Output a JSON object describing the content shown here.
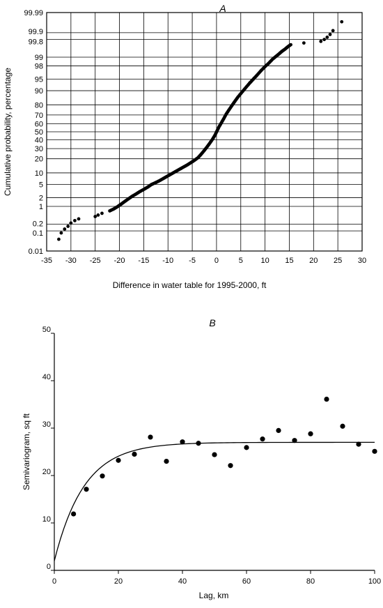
{
  "chart_data": [
    {
      "type": "scatter",
      "panel": "A",
      "title": "A",
      "xlabel": "Difference in water table for 1995-2000, ft",
      "ylabel": "Cumulative probability, percentage",
      "xlim": [
        -35,
        30
      ],
      "xticks": [
        -35,
        -30,
        -25,
        -20,
        -15,
        -10,
        -5,
        0,
        5,
        10,
        15,
        20,
        25,
        30
      ],
      "xtick_labels": [
        "-35",
        "-30",
        "-25",
        "-20",
        "-15",
        "-10",
        "-5",
        "0",
        "5",
        "10",
        "15",
        "20",
        "25",
        "30"
      ],
      "yscale": "normal probability",
      "ylim": [
        0.01,
        99.99
      ],
      "yticks": [
        0.01,
        0.1,
        0.2,
        1,
        2,
        5,
        10,
        20,
        30,
        40,
        50,
        60,
        70,
        80,
        90,
        95,
        98,
        99,
        99.8,
        99.9,
        99.99
      ],
      "ytick_labels": [
        "0.01",
        "0.1",
        "0.2",
        "1",
        "2",
        "5",
        "10",
        "20",
        "30",
        "40",
        "50",
        "60",
        "70",
        "80",
        "90",
        "95",
        "98",
        "99",
        "99.8",
        "99.9",
        "99.99"
      ],
      "grid": true,
      "series": [
        {
          "x": [
            -32.5,
            -32,
            -31.3,
            -30.6,
            -30,
            -29.2,
            -28.4,
            -25,
            -24.4,
            -23.6,
            -22,
            -21.2,
            -20.5,
            -19.8,
            -19,
            -18.2,
            -17.4,
            -16.6,
            -15.8,
            -15,
            -14.2,
            -13.4,
            -12.6,
            -11.8,
            -11,
            -10.2,
            -9.4,
            -8.6,
            -7.8,
            -7,
            -6.2,
            -5.4,
            -4.6,
            -3.8,
            -3.2,
            -2.6,
            -2,
            -1.4,
            -0.8,
            -0.3,
            0.1,
            0.5,
            1,
            1.5,
            2,
            2.6,
            3.2,
            3.8,
            4.4,
            5.2,
            6,
            6.8,
            7.6,
            8.4,
            9.2,
            10,
            10.8,
            11.5,
            12.2,
            12.9,
            13.5,
            14.1,
            14.7,
            15.3,
            18,
            21.5,
            22.2,
            22.8,
            23.4,
            24,
            25.8
          ],
          "y": [
            0.04,
            0.08,
            0.12,
            0.16,
            0.22,
            0.28,
            0.33,
            0.41,
            0.47,
            0.55,
            0.68,
            0.8,
            0.95,
            1.15,
            1.45,
            1.8,
            2.2,
            2.6,
            3.1,
            3.6,
            4.2,
            5,
            5.6,
            6.3,
            7.2,
            8.2,
            9.3,
            10.5,
            11.8,
            13.2,
            14.7,
            16.5,
            18.5,
            21,
            24,
            27.5,
            31.5,
            36,
            41,
            46,
            51,
            56,
            61,
            66,
            71,
            75.5,
            79.5,
            83,
            86,
            89,
            91.5,
            93.5,
            95,
            96.2,
            97.2,
            97.9,
            98.4,
            98.8,
            99.05,
            99.25,
            99.4,
            99.5,
            99.6,
            99.67,
            99.72,
            99.76,
            99.8,
            99.84,
            99.88,
            99.92,
            99.97
          ]
        }
      ]
    },
    {
      "type": "scatter",
      "panel": "B",
      "title": "B",
      "xlabel": "Lag, km",
      "ylabel": "Semivariogram, sq ft",
      "xlim": [
        0,
        100
      ],
      "ylim": [
        0,
        50
      ],
      "xticks": [
        0,
        20,
        40,
        60,
        80,
        100
      ],
      "xtick_labels": [
        "0",
        "20",
        "40",
        "60",
        "80",
        "100"
      ],
      "yticks": [
        0,
        10,
        20,
        30,
        40,
        50
      ],
      "ytick_labels": [
        "0",
        "10",
        "20",
        "30",
        "40",
        "50"
      ],
      "grid": false,
      "series": [
        {
          "x": [
            6,
            10,
            15,
            20,
            25,
            30,
            35,
            40,
            45,
            50,
            55,
            60,
            65,
            70,
            75,
            80,
            85,
            90,
            95,
            100
          ],
          "y": [
            11.9,
            17.1,
            19.9,
            23.2,
            24.5,
            28.1,
            23,
            27.1,
            26.8,
            24.4,
            22.1,
            25.9,
            27.7,
            29.5,
            27.4,
            28.8,
            36.1,
            30.4,
            26.6,
            25.1
          ]
        }
      ],
      "fit_curve": {
        "model": "exponential",
        "nugget": 2,
        "sill": 27,
        "range_km": 28
      }
    }
  ]
}
